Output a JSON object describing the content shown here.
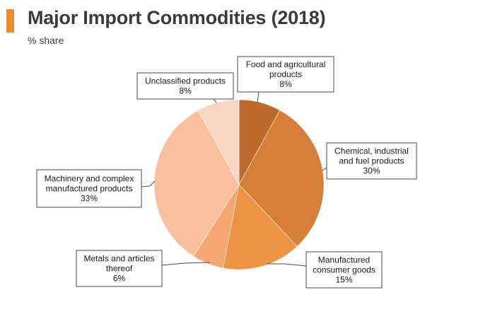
{
  "header": {
    "title": "Major Import Commodities (2018)",
    "subtitle": "% share"
  },
  "colors": {
    "accent": "#f08a24",
    "title_text": "#3b3b3b"
  },
  "chart_data": {
    "type": "pie",
    "title": "Major Import Commodities (2018)",
    "subtitle": "% share",
    "slices": [
      {
        "label": "Food and agricultural products",
        "value": 8,
        "display": "8%",
        "color": "#bd6a2c"
      },
      {
        "label": "Chemical, industrial and fuel products",
        "value": 30,
        "display": "30%",
        "color": "#d67f38"
      },
      {
        "label": "Manufactured consumer goods",
        "value": 15,
        "display": "15%",
        "color": "#ee9343"
      },
      {
        "label": "Metals and articles thereof",
        "value": 6,
        "display": "6%",
        "color": "#f6a670"
      },
      {
        "label": "Machinery and complex manufactured products",
        "value": 33,
        "display": "33%",
        "color": "#f8c09f"
      },
      {
        "label": "Unclassified products",
        "value": 8,
        "display": "8%",
        "color": "#fad4c2"
      }
    ]
  }
}
